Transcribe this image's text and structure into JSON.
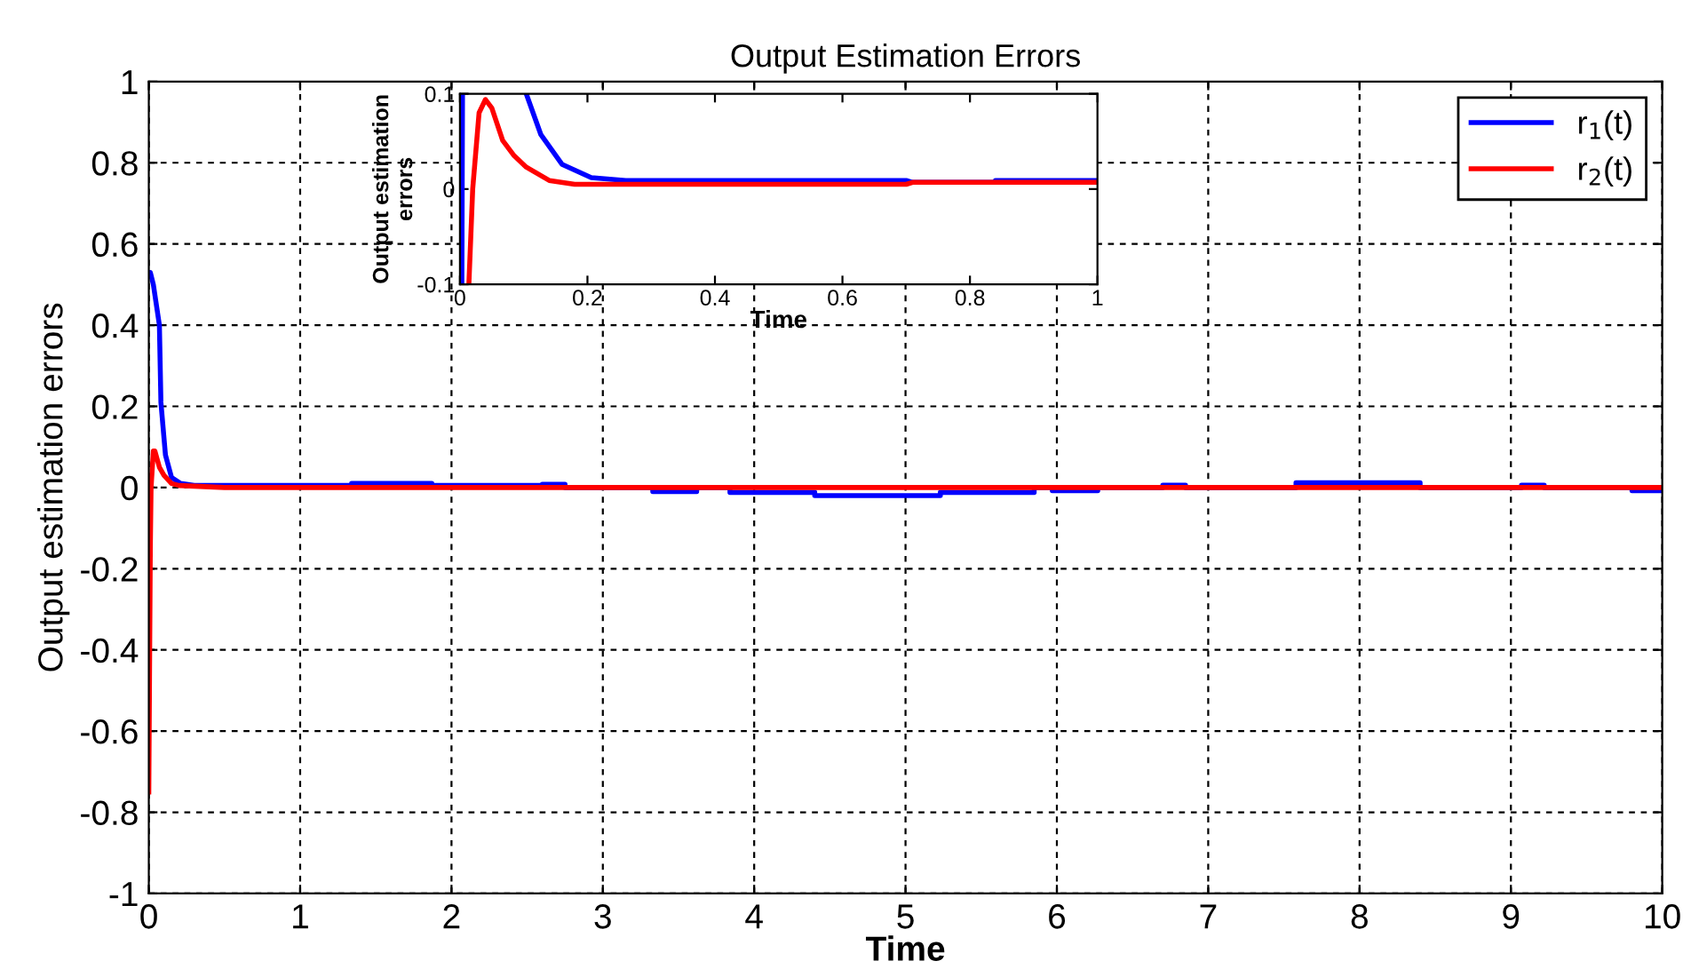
{
  "chart_data": [
    {
      "type": "line",
      "title": "Output Estimation Errors",
      "xlabel": "Time",
      "ylabel": "Output estimation errors",
      "xlim": [
        0,
        10
      ],
      "ylim": [
        -1,
        1
      ],
      "xticks": [
        0,
        1,
        2,
        3,
        4,
        5,
        6,
        7,
        8,
        9,
        10
      ],
      "yticks": [
        -1,
        -0.8,
        -0.6,
        -0.4,
        -0.2,
        0,
        0.2,
        0.4,
        0.6,
        0.8,
        1
      ],
      "grid": true,
      "legend": "top right",
      "line_style": "solid",
      "marker": "none",
      "series": [
        {
          "name": "r$_{1}$(t)",
          "color": "#0000ff",
          "x": [
            0.005,
            0.01,
            0.03,
            0.07,
            0.08,
            0.11,
            0.15,
            0.21,
            0.3,
            1.34,
            1.34,
            1.87,
            1.87,
            2.6,
            2.6,
            2.75,
            2.75,
            3.33,
            3.33,
            3.62,
            3.62,
            3.84,
            3.84,
            4.4,
            4.4,
            5.23,
            5.23,
            5.85,
            5.85,
            5.97,
            5.97,
            6.27,
            6.27,
            6.7,
            6.7,
            6.85,
            6.85,
            7.58,
            7.58,
            8.4,
            8.4,
            9.07,
            9.07,
            9.22,
            9.22,
            9.8,
            9.8,
            10
          ],
          "values": [
            0.53,
            0.53,
            0.5,
            0.4,
            0.21,
            0.08,
            0.025,
            0.01,
            0.005,
            0.005,
            0.01,
            0.01,
            0.005,
            0.005,
            0.008,
            0.008,
            0.0,
            0.0,
            -0.01,
            -0.01,
            0.0,
            0.0,
            -0.012,
            -0.012,
            -0.02,
            -0.02,
            -0.012,
            -0.012,
            0.0,
            0.0,
            -0.008,
            -0.008,
            0.0,
            0.0,
            0.006,
            0.006,
            0.0,
            0.0,
            0.012,
            0.012,
            0.0,
            0.0,
            0.006,
            0.006,
            0.0,
            0.0,
            -0.008,
            -0.008
          ]
        },
        {
          "name": "r$_{2}$(t)",
          "color": "#ff0000",
          "x": [
            0,
            0.01,
            0.015,
            0.03,
            0.04,
            0.07,
            0.1,
            0.15,
            0.2,
            0.5,
            10
          ],
          "values": [
            -0.75,
            -0.15,
            0.0,
            0.09,
            0.09,
            0.05,
            0.03,
            0.01,
            0.005,
            0.0,
            0.0
          ]
        }
      ]
    },
    {
      "type": "line",
      "xlabel": "Time",
      "ylabel": "Output estimation\nerrors",
      "xlim": [
        0,
        1
      ],
      "ylim": [
        -0.1,
        0.1
      ],
      "xticks": [
        0,
        0.2,
        0.4,
        0.6,
        0.8,
        1
      ],
      "yticks": [
        {
          "value": -0.1,
          "label": "-0.1"
        },
        0,
        0.1
      ],
      "grid": false,
      "legend": false,
      "line_style": "solid",
      "marker": "none",
      "series": [
        {
          "color": "#0000ff",
          "x": [
            0.003,
            0.004,
            0.05,
            0.104,
            0.127,
            0.16,
            0.206,
            0.26,
            0.7,
            0.71,
            0.84,
            0.84,
            1
          ],
          "values": [
            -0.1,
            0.1,
            null,
            0.1,
            0.057,
            0.026,
            0.012,
            0.009,
            0.009,
            0.007,
            0.007,
            0.009,
            0.009
          ]
        },
        {
          "color": "#ff0000",
          "x": [
            0.014,
            0.02,
            0.03,
            0.04,
            0.05,
            0.067,
            0.085,
            0.104,
            0.14,
            0.18,
            0.7,
            0.71,
            1
          ],
          "values": [
            -0.1,
            0.0,
            0.08,
            0.094,
            0.085,
            0.051,
            0.035,
            0.023,
            0.009,
            0.005,
            0.005,
            0.007,
            0.007
          ]
        }
      ]
    }
  ]
}
